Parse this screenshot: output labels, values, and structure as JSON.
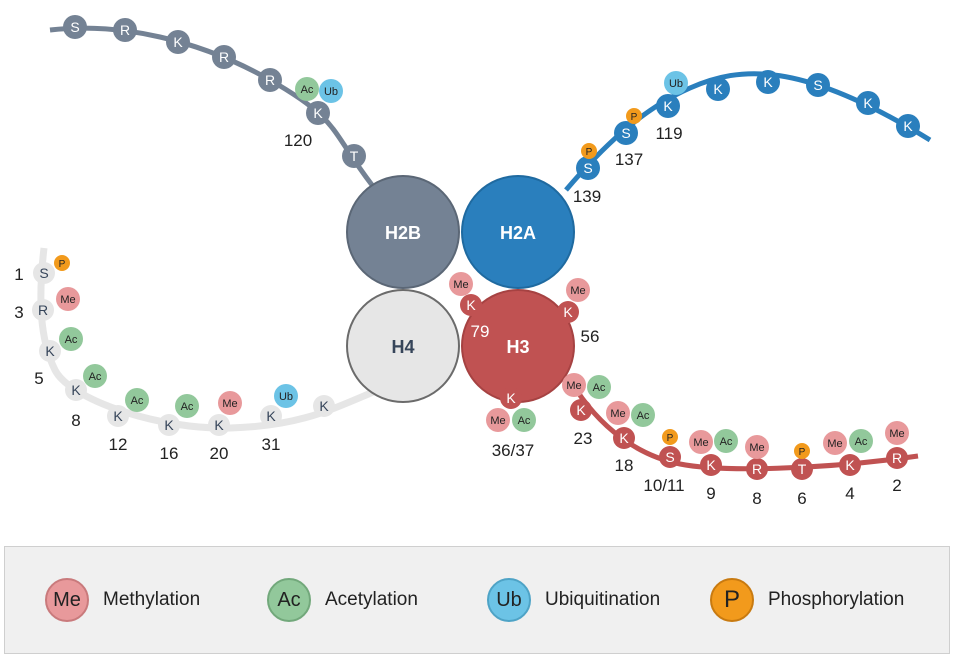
{
  "colors": {
    "h2b": "#748294",
    "h2a": "#2a7fbd",
    "h4": "#e6e6e6",
    "h3": "#c05252",
    "methylation": "#e8999b",
    "acetylation": "#92c89b",
    "ubiquitination": "#6cc3e6",
    "phosphorylation": "#f29a1c"
  },
  "cores": {
    "h2b": "H2B",
    "h2a": "H2A",
    "h4": "H4",
    "h3": "H3"
  },
  "tails": {
    "h2b": {
      "residues": [
        "S",
        "R",
        "K",
        "R",
        "R",
        "K",
        "T"
      ],
      "marks": [
        "Ac",
        "Ub"
      ],
      "positions": [
        "120"
      ]
    },
    "h2a": {
      "residues": [
        "S",
        "S",
        "K",
        "K",
        "K",
        "S",
        "K",
        "K"
      ],
      "marks": [
        "P",
        "P",
        "Ub"
      ],
      "positions": [
        "139",
        "137",
        "119"
      ]
    },
    "h4": {
      "residues": [
        "S",
        "R",
        "K",
        "K",
        "K",
        "K",
        "K",
        "K",
        "K"
      ],
      "marks": [
        "P",
        "Me",
        "Ac",
        "Ac",
        "Ac",
        "Ac",
        "Me",
        "Ub"
      ],
      "positions": [
        "1",
        "3",
        "5",
        "8",
        "12",
        "16",
        "20",
        "31"
      ]
    },
    "h3_core": {
      "residues": [
        "K",
        "K",
        "K"
      ],
      "marks": [
        "Me",
        "Me",
        "Me",
        "Ac"
      ],
      "positions": [
        "79",
        "56",
        "36/37"
      ]
    },
    "h3": {
      "residues": [
        "K",
        "K",
        "S",
        "K",
        "R",
        "T",
        "K",
        "R"
      ],
      "marks": [
        "Me",
        "Ac",
        "Me",
        "Ac",
        "P",
        "Me",
        "Ac",
        "Me",
        "P",
        "Me",
        "Ac",
        "Me"
      ],
      "positions": [
        "23",
        "18",
        "10/11",
        "9",
        "8",
        "6",
        "4",
        "2"
      ]
    }
  },
  "legend": [
    {
      "icon": "Me",
      "label": "Methylation",
      "type": "methylation"
    },
    {
      "icon": "Ac",
      "label": "Acetylation",
      "type": "acetylation"
    },
    {
      "icon": "Ub",
      "label": "Ubiquitination",
      "type": "ubiquitination"
    },
    {
      "icon": "P",
      "label": "Phosphorylation",
      "type": "phosphorylation"
    }
  ]
}
